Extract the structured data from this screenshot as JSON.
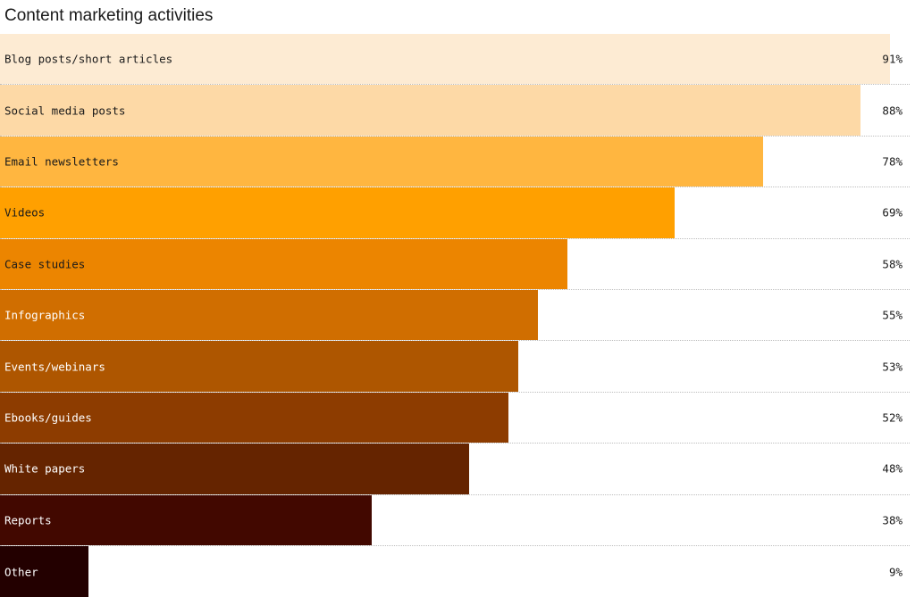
{
  "chart_data": {
    "type": "bar",
    "orientation": "horizontal",
    "title": "Content marketing activities",
    "xlim": [
      0,
      93
    ],
    "grid": false,
    "categories": [
      "Blog posts/short articles",
      "Social media posts",
      "Email newsletters",
      "Videos",
      "Case studies",
      "Infographics",
      "Events/webinars",
      "Ebooks/guides",
      "White papers",
      "Reports",
      "Other"
    ],
    "values": [
      91,
      88,
      78,
      69,
      58,
      55,
      53,
      52,
      48,
      38,
      9
    ],
    "value_labels": [
      "91%",
      "88%",
      "78%",
      "69%",
      "58%",
      "55%",
      "53%",
      "52%",
      "48%",
      "38%",
      "9%"
    ],
    "colors": [
      "#fdebd3",
      "#fdd9a6",
      "#ffb640",
      "#ffa000",
      "#ec8500",
      "#d06e00",
      "#ae5600",
      "#8d3c00",
      "#652400",
      "#420800",
      "#230000"
    ],
    "label_colors": [
      "#1a1a1a",
      "#1a1a1a",
      "#1a1a1a",
      "#1a1a1a",
      "#1a1a1a",
      "#ffffff",
      "#ffffff",
      "#ffffff",
      "#ffffff",
      "#ffffff",
      "#ffffff"
    ]
  }
}
